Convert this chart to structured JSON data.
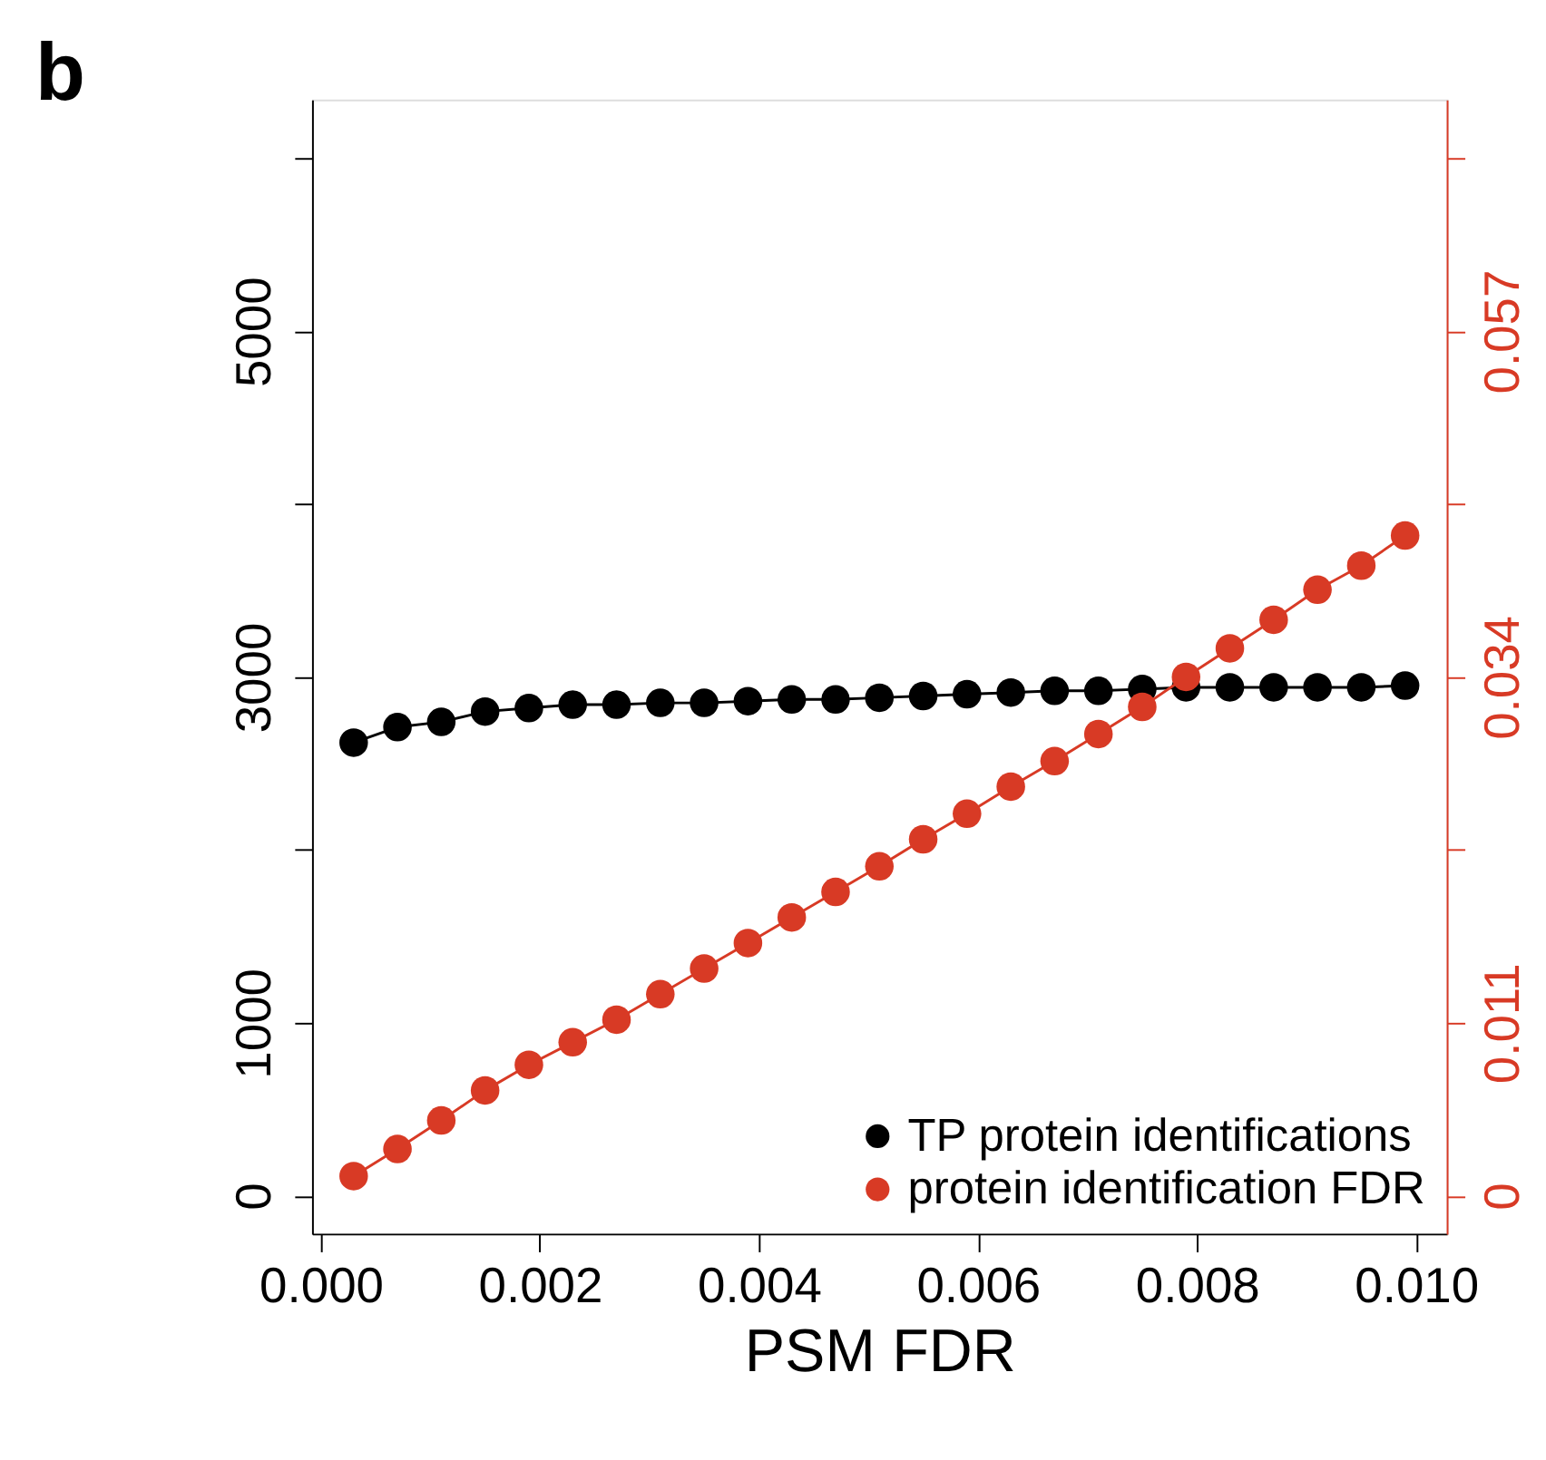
{
  "chart_data": {
    "type": "line",
    "title": "b",
    "xlabel": "PSM FDR",
    "marker": "circle",
    "line_style": "solid",
    "grid": false,
    "legend": "bottom right",
    "x": [
      0.0003,
      0.0007,
      0.0011,
      0.0015,
      0.0019,
      0.0023,
      0.0027,
      0.0031,
      0.0035,
      0.0039,
      0.0043,
      0.0047,
      0.0051,
      0.0055,
      0.0059,
      0.0063,
      0.0067,
      0.0071,
      0.0075,
      0.0079,
      0.0083,
      0.0087,
      0.0091,
      0.0095,
      0.0099
    ],
    "xlim": [
      -8e-05,
      0.01028
    ],
    "xticks": [
      {
        "value": 0,
        "label": "0.000"
      },
      {
        "value": 0.002,
        "label": "0.002"
      },
      {
        "value": 0.004,
        "label": "0.004"
      },
      {
        "value": 0.006,
        "label": "0.006"
      },
      {
        "value": 0.008,
        "label": "0.008"
      },
      {
        "value": 0.01,
        "label": "0.010"
      }
    ],
    "ylim": [
      -220,
      6340
    ],
    "yticks": [
      0,
      1000,
      {
        "value": 2000,
        "label": null
      },
      3000,
      {
        "value": 4000,
        "label": null
      },
      5000,
      {
        "value": 6000,
        "label": null
      }
    ],
    "y2lim": [
      -0.00253,
      0.0729
    ],
    "y2ticks": [
      0,
      {
        "value": 0.0115,
        "label": "0.011"
      },
      {
        "value": 0.023,
        "label": null
      },
      {
        "value": 0.0345,
        "label": "0.034"
      },
      {
        "value": 0.046,
        "label": null
      },
      {
        "value": 0.0575,
        "label": "0.057"
      },
      {
        "value": 0.069,
        "label": null
      }
    ],
    "series": [
      {
        "name": "TP protein identifications",
        "color": "#000000",
        "values": [
          2620,
          2710,
          2740,
          2800,
          2820,
          2840,
          2840,
          2850,
          2850,
          2860,
          2870,
          2870,
          2880,
          2890,
          2900,
          2910,
          2920,
          2920,
          2930,
          2940,
          2940,
          2940,
          2940,
          2940,
          2950
        ]
      },
      {
        "name": "protein identification FDR",
        "color": "#d83a25",
        "axis": "y2",
        "values": [
          0.0013,
          0.0031,
          0.005,
          0.007,
          0.0087,
          0.0102,
          0.0117,
          0.0134,
          0.0151,
          0.0168,
          0.0185,
          0.0202,
          0.0219,
          0.0237,
          0.0254,
          0.0272,
          0.0289,
          0.0307,
          0.0325,
          0.0345,
          0.0364,
          0.0383,
          0.0403,
          0.0419,
          0.0439
        ]
      }
    ]
  }
}
